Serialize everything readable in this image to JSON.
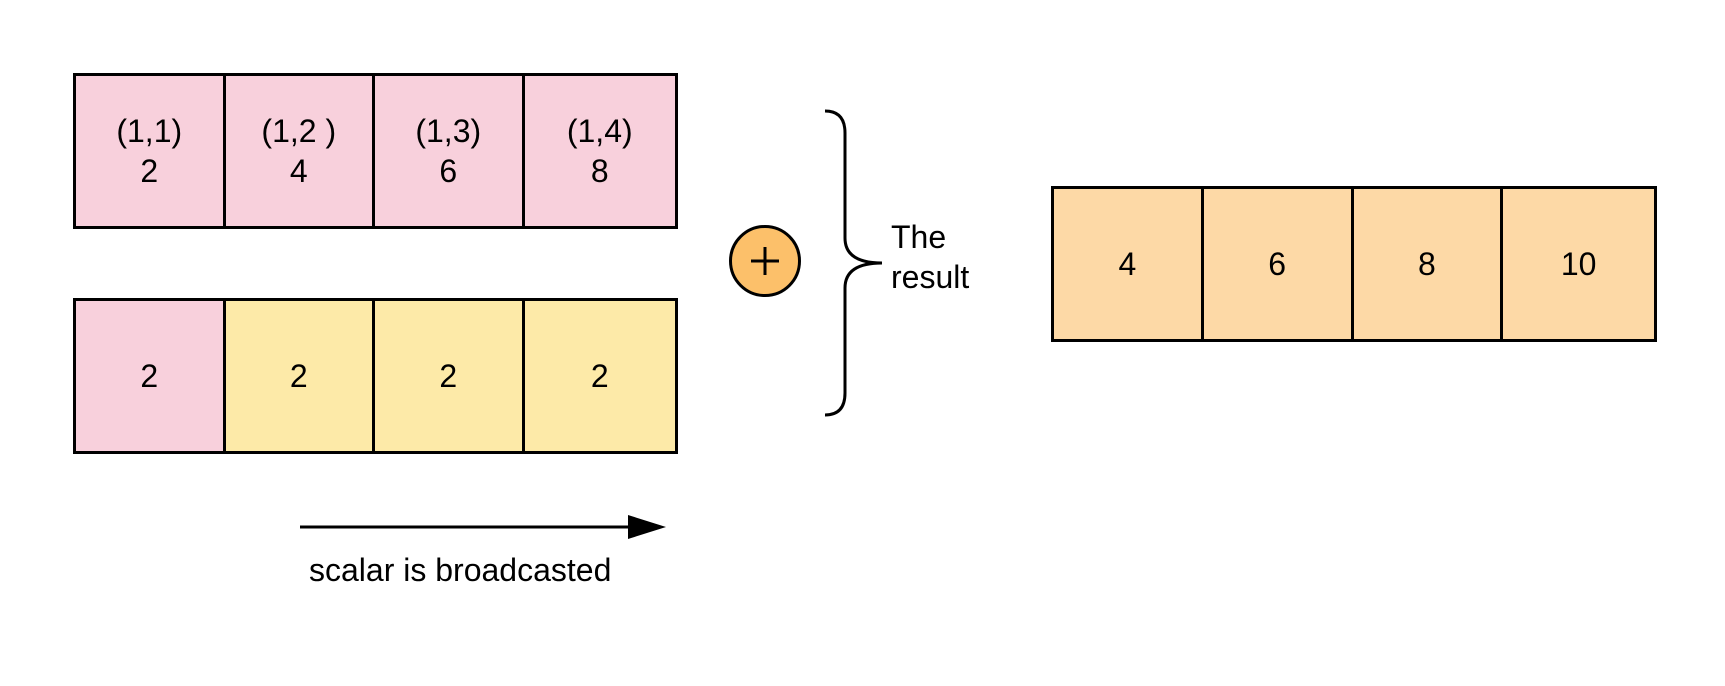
{
  "matrix_row": {
    "cells": [
      {
        "index": "(1,1)",
        "value": "2"
      },
      {
        "index": "(1,2 )",
        "value": "4"
      },
      {
        "index": "(1,3)",
        "value": "6"
      },
      {
        "index": "(1,4)",
        "value": "8"
      }
    ]
  },
  "scalar_row": {
    "cells": [
      "2",
      "2",
      "2",
      "2"
    ]
  },
  "operator": {
    "symbol": "+"
  },
  "result": {
    "label_line1": "The",
    "label_line2": "result",
    "cells": [
      "4",
      "6",
      "8",
      "10"
    ]
  },
  "broadcast": {
    "caption": "scalar is broadcasted"
  },
  "colors": {
    "matrix": "#f8d0dc",
    "scalar_original": "#f8d0dc",
    "scalar_broadcast": "#fdeaa8",
    "result": "#fdd9a6",
    "operator": "#fcc06a",
    "stroke": "#000000"
  }
}
